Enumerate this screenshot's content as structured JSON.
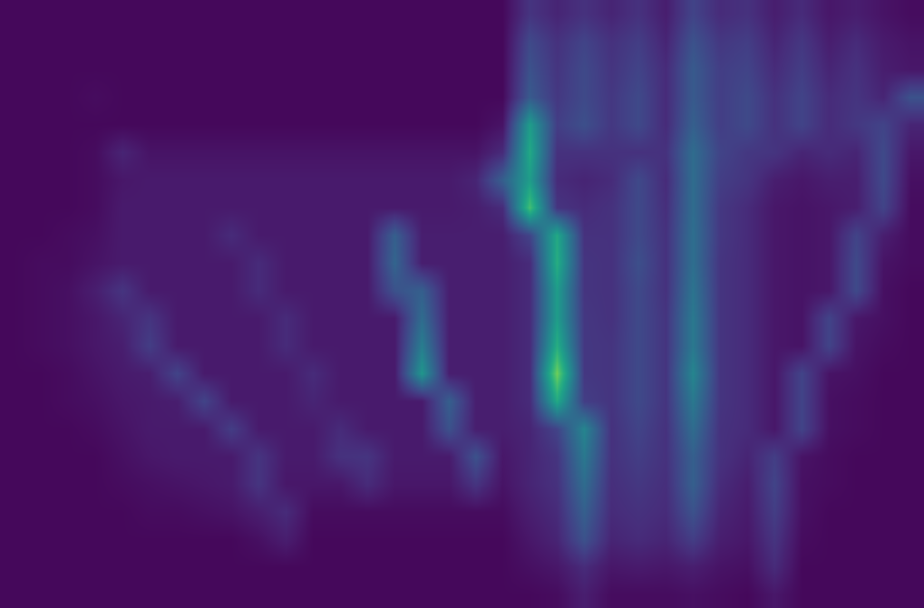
{
  "chart_data": {
    "type": "heatmap",
    "color": "Viridis",
    "zlim": [
      0,
      1
    ],
    "tick_labels": false,
    "grid": false,
    "z": [
      [
        0.02,
        0.02,
        0.02,
        0.02,
        0.02,
        0.02,
        0.02,
        0.02,
        0.02,
        0.02,
        0.02,
        0.02,
        0.02,
        0.02,
        0.02,
        0.02,
        0.02,
        0.02,
        0.02,
        0.15,
        0.1,
        0.14,
        0.1,
        0.14,
        0.08,
        0.2,
        0.12,
        0.14,
        0.08,
        0.12,
        0.06,
        0.08,
        0.05,
        0.03
      ],
      [
        0.02,
        0.02,
        0.02,
        0.02,
        0.02,
        0.02,
        0.02,
        0.02,
        0.02,
        0.02,
        0.02,
        0.02,
        0.02,
        0.02,
        0.02,
        0.02,
        0.02,
        0.02,
        0.02,
        0.22,
        0.14,
        0.2,
        0.14,
        0.18,
        0.1,
        0.25,
        0.16,
        0.18,
        0.1,
        0.16,
        0.08,
        0.12,
        0.07,
        0.05
      ],
      [
        0.02,
        0.02,
        0.02,
        0.02,
        0.02,
        0.02,
        0.02,
        0.02,
        0.02,
        0.02,
        0.02,
        0.02,
        0.02,
        0.02,
        0.02,
        0.02,
        0.02,
        0.02,
        0.02,
        0.25,
        0.15,
        0.22,
        0.15,
        0.2,
        0.12,
        0.28,
        0.18,
        0.2,
        0.12,
        0.18,
        0.1,
        0.14,
        0.08,
        0.06
      ],
      [
        0.02,
        0.02,
        0.02,
        0.03,
        0.02,
        0.02,
        0.02,
        0.02,
        0.02,
        0.02,
        0.02,
        0.02,
        0.02,
        0.02,
        0.02,
        0.02,
        0.02,
        0.02,
        0.02,
        0.28,
        0.16,
        0.22,
        0.16,
        0.22,
        0.12,
        0.28,
        0.18,
        0.22,
        0.14,
        0.2,
        0.12,
        0.15,
        0.1,
        0.25
      ],
      [
        0.02,
        0.02,
        0.02,
        0.02,
        0.02,
        0.02,
        0.02,
        0.02,
        0.02,
        0.02,
        0.02,
        0.02,
        0.02,
        0.02,
        0.02,
        0.02,
        0.02,
        0.02,
        0.05,
        0.55,
        0.18,
        0.24,
        0.16,
        0.22,
        0.12,
        0.3,
        0.18,
        0.22,
        0.14,
        0.2,
        0.12,
        0.16,
        0.2,
        0.1
      ],
      [
        0.02,
        0.02,
        0.02,
        0.03,
        0.1,
        0.05,
        0.05,
        0.05,
        0.05,
        0.05,
        0.05,
        0.05,
        0.05,
        0.05,
        0.05,
        0.05,
        0.05,
        0.05,
        0.12,
        0.6,
        0.14,
        0.14,
        0.14,
        0.14,
        0.14,
        0.35,
        0.2,
        0.16,
        0.15,
        0.1,
        0.12,
        0.1,
        0.22,
        0.06
      ],
      [
        0.02,
        0.02,
        0.02,
        0.03,
        0.06,
        0.07,
        0.07,
        0.07,
        0.07,
        0.07,
        0.07,
        0.07,
        0.07,
        0.07,
        0.07,
        0.07,
        0.07,
        0.1,
        0.3,
        0.55,
        0.12,
        0.1,
        0.12,
        0.22,
        0.12,
        0.35,
        0.18,
        0.15,
        0.08,
        0.06,
        0.08,
        0.08,
        0.22,
        0.04
      ],
      [
        0.02,
        0.02,
        0.02,
        0.03,
        0.07,
        0.07,
        0.07,
        0.07,
        0.07,
        0.07,
        0.07,
        0.07,
        0.07,
        0.07,
        0.07,
        0.07,
        0.07,
        0.08,
        0.12,
        0.7,
        0.15,
        0.12,
        0.14,
        0.22,
        0.13,
        0.35,
        0.16,
        0.12,
        0.06,
        0.05,
        0.06,
        0.08,
        0.2,
        0.03
      ],
      [
        0.02,
        0.02,
        0.03,
        0.04,
        0.07,
        0.07,
        0.07,
        0.07,
        0.12,
        0.07,
        0.07,
        0.07,
        0.07,
        0.07,
        0.3,
        0.08,
        0.08,
        0.08,
        0.08,
        0.2,
        0.6,
        0.14,
        0.14,
        0.22,
        0.14,
        0.36,
        0.16,
        0.12,
        0.06,
        0.05,
        0.06,
        0.2,
        0.08,
        0.03
      ],
      [
        0.02,
        0.03,
        0.03,
        0.05,
        0.07,
        0.07,
        0.07,
        0.07,
        0.07,
        0.12,
        0.07,
        0.07,
        0.07,
        0.07,
        0.32,
        0.08,
        0.08,
        0.08,
        0.08,
        0.12,
        0.62,
        0.15,
        0.14,
        0.24,
        0.14,
        0.36,
        0.15,
        0.12,
        0.06,
        0.05,
        0.06,
        0.22,
        0.05,
        0.03
      ],
      [
        0.02,
        0.03,
        0.04,
        0.08,
        0.15,
        0.07,
        0.07,
        0.07,
        0.07,
        0.12,
        0.07,
        0.07,
        0.07,
        0.07,
        0.25,
        0.3,
        0.08,
        0.08,
        0.08,
        0.12,
        0.55,
        0.15,
        0.14,
        0.22,
        0.14,
        0.38,
        0.15,
        0.12,
        0.06,
        0.05,
        0.06,
        0.22,
        0.04,
        0.02
      ],
      [
        0.02,
        0.03,
        0.04,
        0.06,
        0.1,
        0.15,
        0.07,
        0.07,
        0.07,
        0.07,
        0.12,
        0.07,
        0.07,
        0.07,
        0.07,
        0.35,
        0.08,
        0.08,
        0.08,
        0.12,
        0.55,
        0.16,
        0.14,
        0.22,
        0.15,
        0.4,
        0.15,
        0.12,
        0.06,
        0.05,
        0.2,
        0.06,
        0.04,
        0.02
      ],
      [
        0.02,
        0.03,
        0.04,
        0.06,
        0.08,
        0.18,
        0.07,
        0.07,
        0.07,
        0.07,
        0.12,
        0.07,
        0.07,
        0.07,
        0.07,
        0.42,
        0.08,
        0.08,
        0.08,
        0.12,
        0.62,
        0.16,
        0.15,
        0.22,
        0.15,
        0.4,
        0.15,
        0.12,
        0.06,
        0.05,
        0.2,
        0.05,
        0.03,
        0.02
      ],
      [
        0.02,
        0.02,
        0.03,
        0.05,
        0.07,
        0.08,
        0.2,
        0.07,
        0.07,
        0.07,
        0.07,
        0.12,
        0.07,
        0.07,
        0.07,
        0.52,
        0.08,
        0.08,
        0.08,
        0.12,
        0.78,
        0.16,
        0.15,
        0.22,
        0.15,
        0.45,
        0.15,
        0.12,
        0.06,
        0.2,
        0.05,
        0.04,
        0.02,
        0.02
      ],
      [
        0.02,
        0.02,
        0.03,
        0.04,
        0.06,
        0.07,
        0.08,
        0.2,
        0.07,
        0.07,
        0.07,
        0.1,
        0.07,
        0.07,
        0.07,
        0.07,
        0.3,
        0.08,
        0.08,
        0.12,
        0.6,
        0.18,
        0.15,
        0.22,
        0.15,
        0.4,
        0.15,
        0.12,
        0.06,
        0.2,
        0.04,
        0.03,
        0.02,
        0.02
      ],
      [
        0.02,
        0.02,
        0.02,
        0.03,
        0.05,
        0.07,
        0.07,
        0.07,
        0.18,
        0.07,
        0.07,
        0.07,
        0.12,
        0.07,
        0.07,
        0.07,
        0.25,
        0.08,
        0.08,
        0.1,
        0.2,
        0.45,
        0.14,
        0.2,
        0.14,
        0.35,
        0.14,
        0.12,
        0.06,
        0.2,
        0.04,
        0.03,
        0.02,
        0.02
      ],
      [
        0.02,
        0.02,
        0.02,
        0.02,
        0.04,
        0.06,
        0.07,
        0.07,
        0.07,
        0.15,
        0.07,
        0.07,
        0.14,
        0.15,
        0.07,
        0.07,
        0.07,
        0.25,
        0.06,
        0.1,
        0.15,
        0.4,
        0.14,
        0.18,
        0.14,
        0.3,
        0.14,
        0.1,
        0.18,
        0.05,
        0.03,
        0.02,
        0.02,
        0.02
      ],
      [
        0.02,
        0.02,
        0.02,
        0.02,
        0.03,
        0.04,
        0.05,
        0.06,
        0.07,
        0.15,
        0.06,
        0.06,
        0.06,
        0.12,
        0.06,
        0.06,
        0.06,
        0.15,
        0.05,
        0.1,
        0.14,
        0.35,
        0.13,
        0.16,
        0.13,
        0.3,
        0.12,
        0.08,
        0.2,
        0.04,
        0.03,
        0.02,
        0.02,
        0.02
      ],
      [
        0.02,
        0.02,
        0.02,
        0.02,
        0.02,
        0.03,
        0.03,
        0.04,
        0.05,
        0.08,
        0.12,
        0.03,
        0.03,
        0.03,
        0.03,
        0.03,
        0.03,
        0.03,
        0.03,
        0.08,
        0.12,
        0.3,
        0.12,
        0.14,
        0.12,
        0.25,
        0.1,
        0.07,
        0.18,
        0.04,
        0.02,
        0.02,
        0.02,
        0.02
      ],
      [
        0.02,
        0.02,
        0.02,
        0.02,
        0.02,
        0.02,
        0.02,
        0.02,
        0.02,
        0.04,
        0.08,
        0.02,
        0.02,
        0.02,
        0.02,
        0.02,
        0.02,
        0.02,
        0.02,
        0.06,
        0.1,
        0.25,
        0.1,
        0.12,
        0.1,
        0.18,
        0.08,
        0.06,
        0.15,
        0.03,
        0.02,
        0.02,
        0.02,
        0.02
      ],
      [
        0.02,
        0.02,
        0.02,
        0.02,
        0.02,
        0.02,
        0.02,
        0.02,
        0.02,
        0.02,
        0.02,
        0.02,
        0.02,
        0.02,
        0.02,
        0.02,
        0.02,
        0.02,
        0.02,
        0.04,
        0.06,
        0.12,
        0.06,
        0.07,
        0.06,
        0.08,
        0.05,
        0.04,
        0.12,
        0.02,
        0.02,
        0.02,
        0.02,
        0.02
      ],
      [
        0.02,
        0.02,
        0.02,
        0.02,
        0.02,
        0.02,
        0.02,
        0.02,
        0.02,
        0.02,
        0.02,
        0.02,
        0.02,
        0.02,
        0.02,
        0.02,
        0.02,
        0.02,
        0.02,
        0.02,
        0.03,
        0.08,
        0.03,
        0.03,
        0.03,
        0.04,
        0.03,
        0.02,
        0.06,
        0.02,
        0.02,
        0.02,
        0.02,
        0.02
      ]
    ]
  }
}
